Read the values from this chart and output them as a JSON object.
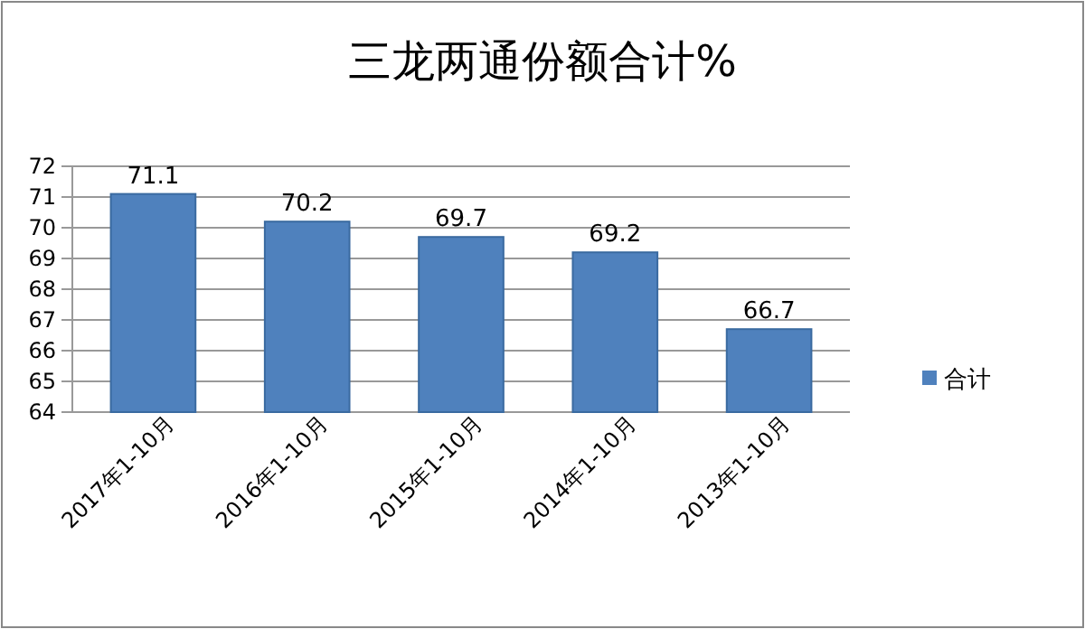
{
  "chart_data": {
    "type": "bar",
    "title": "三龙两通份额合计%",
    "categories": [
      "2017年1-10月",
      "2016年1-10月",
      "2015年1-10月",
      "2014年1-10月",
      "2013年1-10月"
    ],
    "series": [
      {
        "name": "合计",
        "color": "#4f81bd",
        "values": [
          71.1,
          70.2,
          69.7,
          69.2,
          66.7
        ]
      }
    ],
    "ylim": [
      64,
      72
    ],
    "yticks": [
      64,
      65,
      66,
      67,
      68,
      69,
      70,
      71,
      72
    ],
    "grid": "y",
    "legend": "right",
    "data_labels": true
  }
}
